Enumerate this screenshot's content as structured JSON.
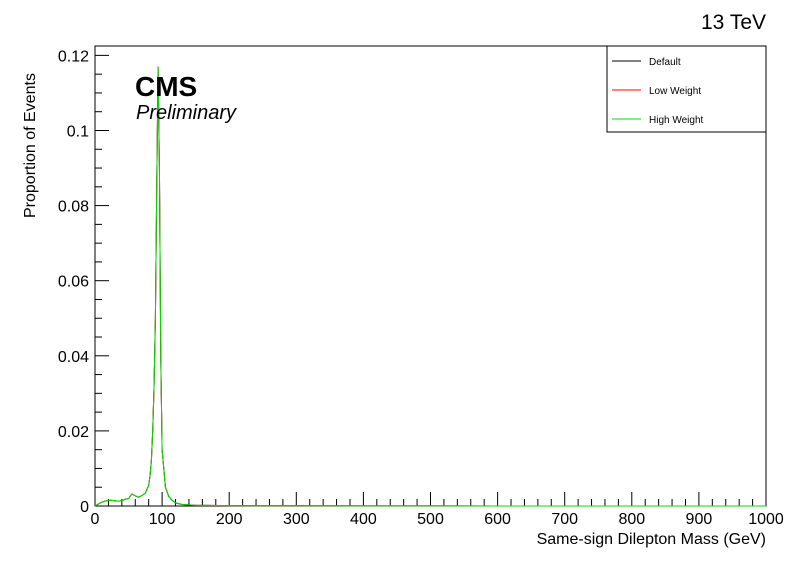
{
  "energy_label": "13 TeV",
  "experiment_label": "CMS",
  "status_label": "Preliminary",
  "chart_data": {
    "type": "line",
    "xlabel": "Same-sign Dilepton Mass (GeV)",
    "ylabel": "Proportion of Events",
    "xlim": [
      0,
      1000
    ],
    "ylim": [
      0,
      0.1225
    ],
    "x_ticks": [
      0,
      100,
      200,
      300,
      400,
      500,
      600,
      700,
      800,
      900,
      1000
    ],
    "x_tick_labels": [
      "0",
      "100",
      "200",
      "300",
      "400",
      "500",
      "600",
      "700",
      "800",
      "900",
      "1000"
    ],
    "y_ticks": [
      0,
      0.02,
      0.04,
      0.06,
      0.08,
      0.1,
      0.12
    ],
    "y_tick_labels": [
      "0",
      "0.02",
      "0.04",
      "0.06",
      "0.08",
      "0.1",
      "0.12"
    ],
    "grid": false,
    "legend_position": "top-right",
    "legend": [
      {
        "name": "Default",
        "color": "#000000"
      },
      {
        "name": "Low Weight",
        "color": "#ff0000"
      },
      {
        "name": "High Weight",
        "color": "#00dd00"
      }
    ],
    "x": [
      0,
      5,
      10,
      15,
      20,
      25,
      30,
      35,
      40,
      45,
      50,
      55,
      60,
      65,
      70,
      75,
      80,
      82,
      84,
      86,
      88,
      90,
      92,
      94,
      96,
      98,
      100,
      105,
      110,
      115,
      120,
      130,
      150,
      200,
      300,
      400,
      500,
      600,
      700,
      800,
      900,
      1000
    ],
    "series": [
      {
        "name": "Default",
        "color": "#000000",
        "values": [
          0,
          0.0005,
          0.001,
          0.0013,
          0.0015,
          0.0015,
          0.0014,
          0.0013,
          0.0014,
          0.0018,
          0.002,
          0.0032,
          0.0027,
          0.0023,
          0.0028,
          0.0034,
          0.0055,
          0.008,
          0.012,
          0.02,
          0.032,
          0.05,
          0.085,
          0.117,
          0.09,
          0.04,
          0.015,
          0.005,
          0.0025,
          0.0015,
          0.0008,
          0.0004,
          0.0002,
          0.0001,
          5e-05,
          3e-05,
          2e-05,
          1e-05,
          1e-05,
          1e-05,
          0.0,
          0.0
        ]
      },
      {
        "name": "Low Weight",
        "color": "#ff0000",
        "values": [
          0,
          0.0005,
          0.001,
          0.0013,
          0.0015,
          0.0015,
          0.0014,
          0.0013,
          0.0014,
          0.0018,
          0.002,
          0.0032,
          0.0027,
          0.0023,
          0.0028,
          0.0034,
          0.0055,
          0.008,
          0.012,
          0.02,
          0.032,
          0.05,
          0.085,
          0.117,
          0.09,
          0.04,
          0.015,
          0.005,
          0.0025,
          0.0015,
          0.0008,
          0.0004,
          0.0002,
          0.0001,
          5e-05,
          3e-05,
          2e-05,
          1e-05,
          1e-05,
          1e-05,
          0.0,
          0.0
        ]
      },
      {
        "name": "High Weight",
        "color": "#00dd00",
        "values": [
          0,
          0.0005,
          0.001,
          0.0013,
          0.0015,
          0.0015,
          0.0014,
          0.0013,
          0.0014,
          0.0018,
          0.002,
          0.0032,
          0.0027,
          0.0023,
          0.0028,
          0.0034,
          0.0055,
          0.008,
          0.012,
          0.02,
          0.032,
          0.05,
          0.085,
          0.117,
          0.09,
          0.04,
          0.015,
          0.005,
          0.0025,
          0.0015,
          0.0008,
          0.0004,
          0.0002,
          0.0001,
          5e-05,
          3e-05,
          2e-05,
          1e-05,
          1e-05,
          1e-05,
          0.0,
          0.0
        ]
      }
    ]
  }
}
